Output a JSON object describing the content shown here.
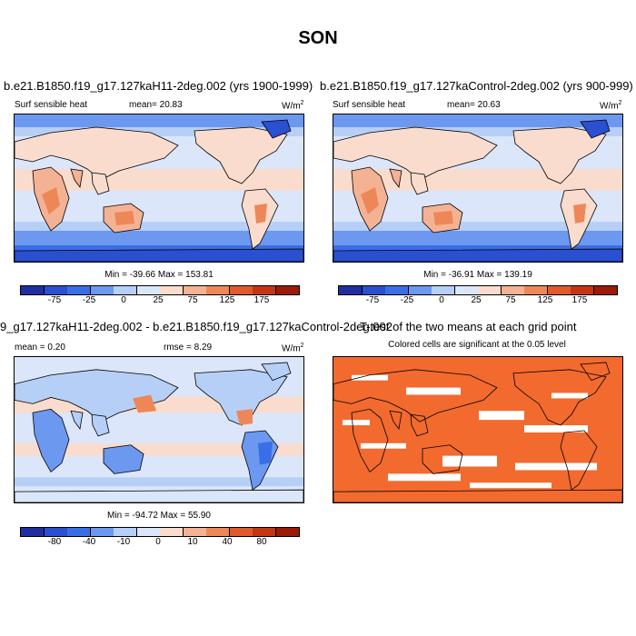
{
  "figure_title": "SON",
  "colors": {
    "scale11": [
      "#1f2fa0",
      "#2a4fd0",
      "#3a6ee6",
      "#6c98ef",
      "#b6cff7",
      "#dbe6fb",
      "#f9dccd",
      "#f4b294",
      "#ee8758",
      "#e05a2b",
      "#c63513",
      "#9b1a08"
    ],
    "ocean_light": "#dbe6fb",
    "sig_fill": "#f26a2e"
  },
  "panels": {
    "p1": {
      "title": "b.e21.B1850.f19_g17.127kaH11-2deg.002 (yrs 1900-1999)",
      "left_label": "Surf sensible heat",
      "mean_label": "mean=  20.83",
      "units": "W/m",
      "units_sup": "2",
      "minmax": "Min = -39.66 Max = 153.81",
      "colorbar_ticks": [
        "-75",
        "-25",
        "0",
        "25",
        "75",
        "125",
        "175"
      ]
    },
    "p2": {
      "title": "b.e21.B1850.f19_g17.127kaControl-2deg.002 (yrs 900-999)",
      "left_label": "Surf sensible heat",
      "mean_label": "mean=  20.63",
      "units": "W/m",
      "units_sup": "2",
      "minmax": "Min = -36.91 Max = 139.19",
      "colorbar_ticks": [
        "-75",
        "-25",
        "0",
        "25",
        "75",
        "125",
        "175"
      ]
    },
    "p3": {
      "title": "9_g17.127kaH11-2deg.002 - b.e21.B1850.f19_g17.127kaControl-2deg.002",
      "mean_label": "mean =   0.20",
      "rmse_label": "rmse =   8.29",
      "units": "W/m",
      "units_sup": "2",
      "minmax": "Min = -94.72 Max =  55.90",
      "colorbar_ticks": [
        "-80",
        "-40",
        "-10",
        "0",
        "10",
        "40",
        "80"
      ]
    },
    "p4": {
      "title": "T-test of the two means at each grid point",
      "subtitle": "Colored cells are significant at the 0.05 level"
    }
  },
  "chart_data": [
    {
      "type": "heatmap",
      "title": "b.e21.B1850.f19_g17.127kaH11-2deg.002 (yrs 1900-1999)",
      "variable": "Surf sensible heat",
      "units": "W/m2",
      "mean": 20.83,
      "min": -39.66,
      "max": 153.81,
      "colorbar_ticks": [
        -75,
        -25,
        0,
        25,
        75,
        125,
        175
      ]
    },
    {
      "type": "heatmap",
      "title": "b.e21.B1850.f19_g17.127kaControl-2deg.002 (yrs 900-999)",
      "variable": "Surf sensible heat",
      "units": "W/m2",
      "mean": 20.63,
      "min": -36.91,
      "max": 139.19,
      "colorbar_ticks": [
        -75,
        -25,
        0,
        25,
        75,
        125,
        175
      ]
    },
    {
      "type": "heatmap",
      "title": "9_g17.127kaH11-2deg.002 - b.e21.B1850.f19_g17.127kaControl-2deg.002",
      "units": "W/m2",
      "mean": 0.2,
      "rmse": 8.29,
      "min": -94.72,
      "max": 55.9,
      "colorbar_ticks": [
        -80,
        -40,
        -10,
        0,
        10,
        40,
        80
      ]
    },
    {
      "type": "heatmap",
      "title": "T-test of the two means at each grid point",
      "subtitle": "Colored cells are significant at the 0.05 level"
    }
  ]
}
